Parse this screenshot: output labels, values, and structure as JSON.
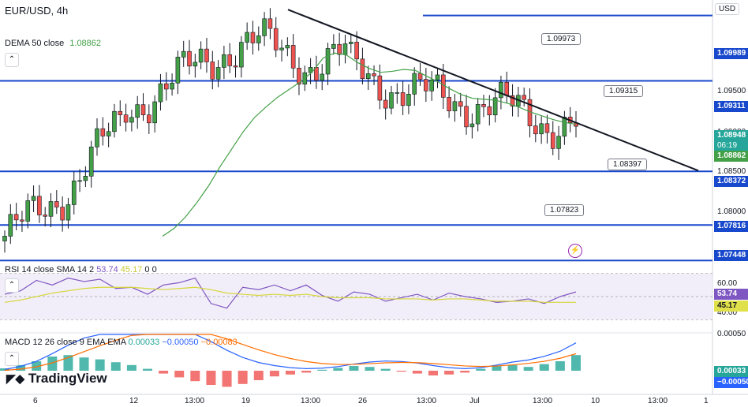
{
  "header": {
    "symbol": "EUR/USD, 4h",
    "currency": "USD"
  },
  "legend": {
    "dema": "DEMA 50 close",
    "dema_value": "1.08862"
  },
  "rsi_legend": {
    "label": "RSI 14 close SMA 14 2",
    "v1": "53.74",
    "v2": "45.17",
    "v3": "0",
    "v4": "0"
  },
  "macd_legend": {
    "label": "MACD 12 26 close 9 EMA EMA",
    "v1": "0.00033",
    "v2": "−0.00050",
    "v3": "−0.00083"
  },
  "brand": "TradingView",
  "price_axis": {
    "ticks": [
      "1.09500",
      "1.09000",
      "1.08500",
      "1.08000"
    ],
    "levels": [
      {
        "text": "1.09989",
        "color": "#1848cc"
      },
      {
        "text": "1.09311",
        "color": "#1848cc"
      },
      {
        "text": "1.08948",
        "color": "#26a69a"
      },
      {
        "text": "06:19",
        "color": "#26a69a"
      },
      {
        "text": "1.08862",
        "color": "#43a047"
      },
      {
        "text": "1.08372",
        "color": "#1848cc"
      },
      {
        "text": "1.07816",
        "color": "#1848cc"
      },
      {
        "text": "1.07448",
        "color": "#1848cc"
      }
    ]
  },
  "rsi_axis": {
    "ticks": [
      "60.00",
      "40.00"
    ],
    "value1": "53.74",
    "value2": "45.17"
  },
  "macd_axis": {
    "tick": "0.00050",
    "value1": "0.00033",
    "value2": "−0.00050"
  },
  "time_axis": [
    "6",
    "12",
    "13:00",
    "19",
    "13:00",
    "26",
    "13:00",
    "Jul",
    "13:00",
    "10",
    "13:00",
    "1"
  ],
  "callouts": [
    "1.09973",
    "1.09315",
    "1.08397",
    "1.07823"
  ],
  "chart_data": {
    "type": "candlestick",
    "title": "EUR/USD, 4h",
    "ylim": [
      1.0745,
      1.1015
    ],
    "horizontal_levels": [
      1.09989,
      1.09311,
      1.08372,
      1.07816,
      1.07448
    ],
    "trendline": {
      "from": 1.1005,
      "to": 1.0838
    },
    "dema50": [
      1.077,
      1.0778,
      1.079,
      1.0805,
      1.0822,
      1.0842,
      1.086,
      1.0878,
      1.0893,
      1.0904,
      1.0914,
      1.0922,
      1.093,
      1.094,
      1.0955,
      1.096,
      1.0958,
      1.095,
      1.0944,
      1.094,
      1.0941,
      1.0943,
      1.0942,
      1.0936,
      1.093,
      1.0923,
      1.0917,
      1.0913,
      1.0912,
      1.0911,
      1.0908,
      1.0904,
      1.0899,
      1.0895,
      1.0891,
      1.0888,
      1.0886
    ],
    "rsi": [
      52,
      55,
      64,
      60,
      66,
      63,
      65,
      57,
      58,
      52,
      60,
      62,
      66,
      44,
      40,
      58,
      56,
      60,
      55,
      60,
      51,
      46,
      54,
      52,
      46,
      49,
      52,
      47,
      53,
      50,
      48,
      45,
      46,
      48,
      44,
      50,
      54
    ],
    "rsi_sma": [
      45,
      47,
      50,
      53,
      55,
      57,
      58,
      58,
      58,
      57,
      56,
      57,
      58,
      56,
      53,
      52,
      51,
      52,
      51,
      52,
      50,
      49,
      49,
      49,
      48,
      48,
      48,
      47,
      48,
      48,
      47,
      46,
      46,
      46,
      45,
      45,
      45
    ],
    "macd_hist": [
      5e-05,
      0.00012,
      0.0002,
      0.0003,
      0.00033,
      0.00028,
      0.00024,
      0.00018,
      0.00012,
      4e-05,
      -6e-05,
      -0.00014,
      -0.00022,
      -0.0003,
      -0.00034,
      -0.00028,
      -0.0002,
      -0.00012,
      -8e-05,
      -4e-05,
      2e-05,
      6e-05,
      0.0001,
      8e-05,
      4e-05,
      -2e-05,
      -6e-05,
      -0.0001,
      -8e-05,
      -4e-05,
      4e-05,
      0.0001,
      0.00012,
      8e-05,
      0.00014,
      0.0002,
      0.00033
    ]
  }
}
